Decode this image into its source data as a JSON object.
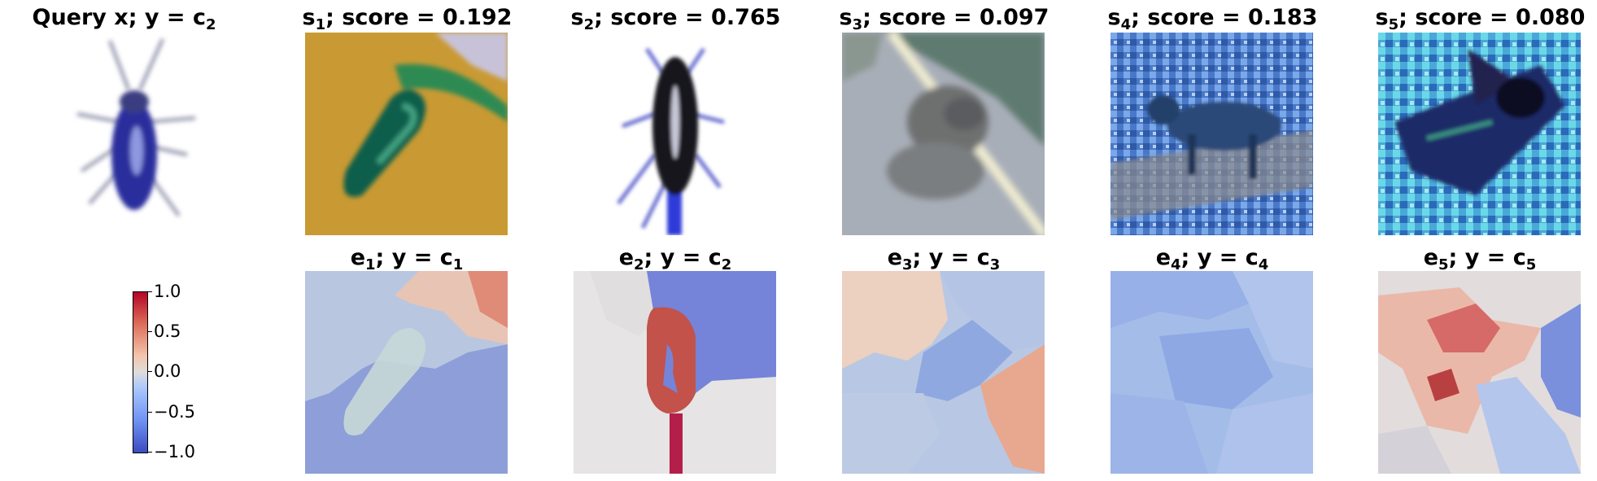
{
  "top_row": [
    {
      "name": "query",
      "prefix": "Query x; y = c",
      "sub": "2"
    },
    {
      "name": "s1",
      "prefix": "s",
      "sub": "1",
      "suffix": "; score = 0.192"
    },
    {
      "name": "s2",
      "prefix": "s",
      "sub": "2",
      "suffix": "; score = 0.765"
    },
    {
      "name": "s3",
      "prefix": "s",
      "sub": "3",
      "suffix": "; score = 0.097"
    },
    {
      "name": "s4",
      "prefix": "s",
      "sub": "4",
      "suffix": "; score = 0.183"
    },
    {
      "name": "s5",
      "prefix": "s",
      "sub": "5",
      "suffix": "; score = 0.080"
    }
  ],
  "bottom_row": [
    {
      "name": "e1",
      "prefix": "e",
      "sub": "1",
      "mid": "; y = c",
      "sub2": "1"
    },
    {
      "name": "e2",
      "prefix": "e",
      "sub": "2",
      "mid": "; y = c",
      "sub2": "2"
    },
    {
      "name": "e3",
      "prefix": "e",
      "sub": "3",
      "mid": "; y = c",
      "sub2": "3"
    },
    {
      "name": "e4",
      "prefix": "e",
      "sub": "4",
      "mid": "; y = c",
      "sub2": "4"
    },
    {
      "name": "e5",
      "prefix": "e",
      "sub": "5",
      "mid": "; y = c",
      "sub2": "5"
    }
  ],
  "colorbar": {
    "ticks": [
      "1.0",
      "0.5",
      "0.0",
      "−0.5",
      "−1.0"
    ],
    "range": [
      -1.0,
      1.0
    ],
    "colormap": "coolwarm"
  }
}
